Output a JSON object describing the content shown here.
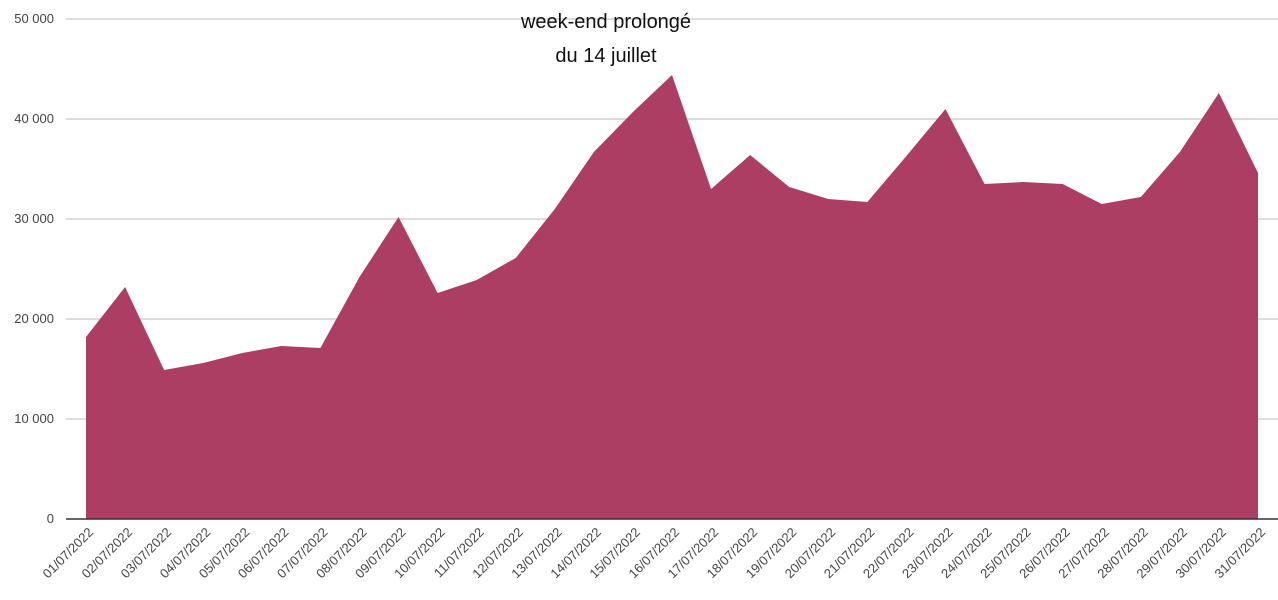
{
  "chart_data": {
    "type": "area",
    "annotation": "week-end prolongé du 14 juillet",
    "categories": [
      "01/07/2022",
      "02/07/2022",
      "03/07/2022",
      "04/07/2022",
      "05/07/2022",
      "06/07/2022",
      "07/07/2022",
      "08/07/2022",
      "09/07/2022",
      "10/07/2022",
      "11/07/2022",
      "12/07/2022",
      "13/07/2022",
      "14/07/2022",
      "15/07/2022",
      "16/07/2022",
      "17/07/2022",
      "18/07/2022",
      "19/07/2022",
      "20/07/2022",
      "21/07/2022",
      "22/07/2022",
      "23/07/2022",
      "24/07/2022",
      "25/07/2022",
      "26/07/2022",
      "27/07/2022",
      "28/07/2022",
      "29/07/2022",
      "30/07/2022",
      "31/07/2022"
    ],
    "values": [
      18200,
      23200,
      14900,
      15600,
      16600,
      17300,
      17100,
      24200,
      30200,
      22600,
      23900,
      26100,
      31000,
      36700,
      40700,
      44400,
      33000,
      36400,
      33200,
      32000,
      31700,
      36300,
      41000,
      33500,
      33700,
      33500,
      31500,
      32200,
      36700,
      42600,
      34600
    ],
    "color": "#ad3e63",
    "ylim": [
      0,
      50000
    ],
    "yticks": [
      0,
      {
        "value": 10000,
        "label": "10 000"
      },
      {
        "value": 20000,
        "label": "20 000"
      },
      {
        "value": 30000,
        "label": "30 000"
      },
      {
        "value": 40000,
        "label": "40 000"
      },
      {
        "value": 50000,
        "label": "50 000"
      }
    ],
    "grid": true
  }
}
